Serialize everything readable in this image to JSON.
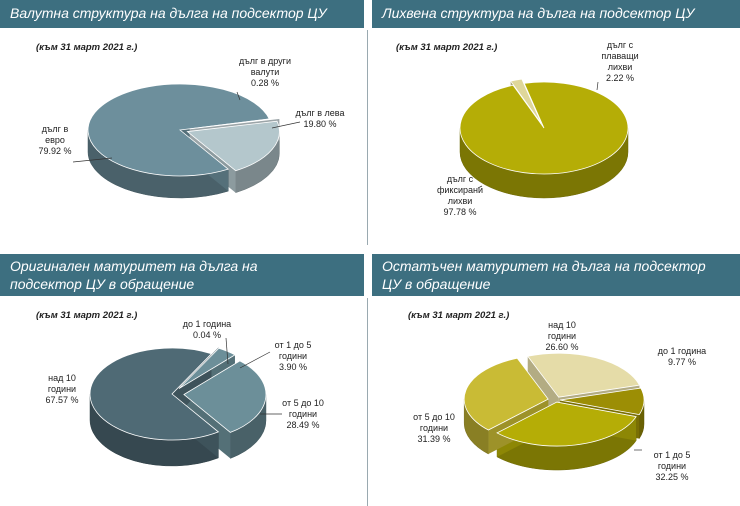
{
  "colors": {
    "header_bg": "#3d6f80",
    "slate": "#6d8f9c",
    "slate_dark": "#4a6b78",
    "lightslate": "#b4c7cc",
    "darkslate": "#4f6a75",
    "midslate": "#6c8f99",
    "olive": "#b5ad06",
    "pale_olive": "#dfd79a",
    "khaki": "#e5dca8",
    "gold": "#c9bb35"
  },
  "chart_data": [
    {
      "type": "pie",
      "title": "Валутна структура на дълга на подсектор ЦУ",
      "date": "(към 31 март 2021 г.)",
      "categories": [
        "дълг в евро",
        "дълг в лева",
        "дълг в други валути"
      ],
      "values": [
        79.92,
        19.8,
        0.28
      ],
      "labels": [
        {
          "lines": [
            "дълг в",
            "евро",
            "79.92 %"
          ]
        },
        {
          "lines": [
            "дълг в лева",
            "19.80 %"
          ]
        },
        {
          "lines": [
            "дълг в други",
            "валути",
            "0.28 %"
          ]
        }
      ]
    },
    {
      "type": "pie",
      "title": "Лихвена структура на дълга на подсектор ЦУ",
      "date": "(към 31 март 2021 г.)",
      "categories": [
        "дълг с фиксирани лихви",
        "дълг с плаващи лихви"
      ],
      "values": [
        97.78,
        2.22
      ],
      "labels": [
        {
          "lines": [
            "дълг с",
            "фиксирани",
            "лихви",
            "97.78 %"
          ]
        },
        {
          "lines": [
            "дълг с",
            "плаващи",
            "лихви",
            "2.22 %"
          ]
        }
      ]
    },
    {
      "type": "pie",
      "title": "Оригинален матуритет на дълга на подсектор ЦУ в обращение",
      "title_lines": [
        "Оригинален матуритет на дълга на",
        "подсектор ЦУ в обращение"
      ],
      "date": "(към 31 март 2021 г.)",
      "categories": [
        "над 10 години",
        "от 5 до 10 години",
        "от 1 до 5 години",
        "до 1 година"
      ],
      "values": [
        67.57,
        28.49,
        3.9,
        0.04
      ],
      "labels": [
        {
          "lines": [
            "над 10",
            "години",
            "67.57 %"
          ]
        },
        {
          "lines": [
            "от 5 до 10",
            "години",
            "28.49 %"
          ]
        },
        {
          "lines": [
            "от 1 до 5",
            "години",
            "3.90 %"
          ]
        },
        {
          "lines": [
            "до 1 година",
            "0.04 %"
          ]
        }
      ]
    },
    {
      "type": "pie",
      "title": "Остатъчен матуритет на дълга на подсектор ЦУ в обращение",
      "title_lines": [
        "Остатъчен матуритет на дълга на подсектор",
        "ЦУ в обращение"
      ],
      "date": "(към 31 март 2021 г.)",
      "categories": [
        "над 10 години",
        "до 1 година",
        "от 1 до 5 години",
        "от 5 до 10 години"
      ],
      "values": [
        26.6,
        9.77,
        32.25,
        31.39
      ],
      "labels": [
        {
          "lines": [
            "над 10",
            "години",
            "26.60 %"
          ]
        },
        {
          "lines": [
            "до 1 година",
            "9.77 %"
          ]
        },
        {
          "lines": [
            "от 1 до 5",
            "години",
            "32.25 %"
          ]
        },
        {
          "lines": [
            "от 5 до 10",
            "години",
            "31.39 %"
          ]
        }
      ]
    }
  ]
}
